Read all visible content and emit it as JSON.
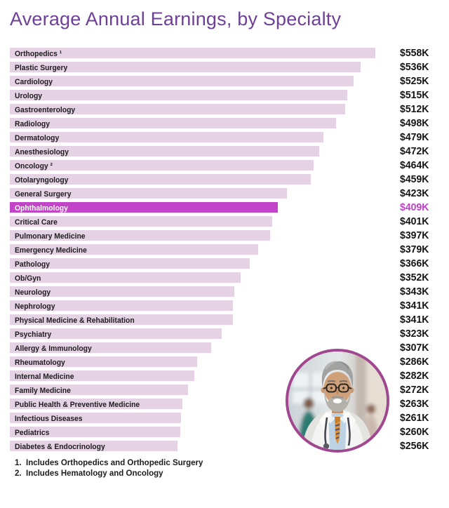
{
  "title": "Average Annual Earnings, by Specialty",
  "colors": {
    "title": "#6f4097",
    "bar": "#e6d2e5",
    "label": "#1d1d1d",
    "value": "#141414",
    "highlight_bar": "#c244c8",
    "highlight_text": "#ffffff",
    "highlight_value": "#c23ec8",
    "photo_border": "#a1478f"
  },
  "chart_data": {
    "type": "bar",
    "orientation": "horizontal",
    "title": "Average Annual Earnings, by Specialty",
    "unit": "USD thousands per year",
    "max_value": 558,
    "highlighted_category": "Ophthalmology",
    "bars": [
      {
        "label": "Orthopedics ¹",
        "value": 558,
        "value_label": "$558K",
        "highlight": false
      },
      {
        "label": "Plastic Surgery",
        "value": 536,
        "value_label": "$536K",
        "highlight": false
      },
      {
        "label": "Cardiology",
        "value": 525,
        "value_label": "$525K",
        "highlight": false
      },
      {
        "label": "Urology",
        "value": 515,
        "value_label": "$515K",
        "highlight": false
      },
      {
        "label": "Gastroenterology",
        "value": 512,
        "value_label": "$512K",
        "highlight": false
      },
      {
        "label": "Radiology",
        "value": 498,
        "value_label": "$498K",
        "highlight": false
      },
      {
        "label": "Dermatology",
        "value": 479,
        "value_label": "$479K",
        "highlight": false
      },
      {
        "label": "Anesthesiology",
        "value": 472,
        "value_label": "$472K",
        "highlight": false
      },
      {
        "label": "Oncology ²",
        "value": 464,
        "value_label": "$464K",
        "highlight": false
      },
      {
        "label": "Otolaryngology",
        "value": 459,
        "value_label": "$459K",
        "highlight": false
      },
      {
        "label": "General Surgery",
        "value": 423,
        "value_label": "$423K",
        "highlight": false
      },
      {
        "label": "Ophthalmology",
        "value": 409,
        "value_label": "$409K",
        "highlight": true
      },
      {
        "label": "Critical Care",
        "value": 401,
        "value_label": "$401K",
        "highlight": false
      },
      {
        "label": "Pulmonary Medicine",
        "value": 397,
        "value_label": "$397K",
        "highlight": false
      },
      {
        "label": "Emergency Medicine",
        "value": 379,
        "value_label": "$379K",
        "highlight": false
      },
      {
        "label": "Pathology",
        "value": 366,
        "value_label": "$366K",
        "highlight": false
      },
      {
        "label": "Ob/Gyn",
        "value": 352,
        "value_label": "$352K",
        "highlight": false
      },
      {
        "label": "Neurology",
        "value": 343,
        "value_label": "$343K",
        "highlight": false
      },
      {
        "label": "Nephrology",
        "value": 341,
        "value_label": "$341K",
        "highlight": false
      },
      {
        "label": "Physical Medicine & Rehabilitation",
        "value": 341,
        "value_label": "$341K",
        "highlight": false
      },
      {
        "label": "Psychiatry",
        "value": 323,
        "value_label": "$323K",
        "highlight": false
      },
      {
        "label": "Allergy & Immunology",
        "value": 307,
        "value_label": "$307K",
        "highlight": false
      },
      {
        "label": "Rheumatology",
        "value": 286,
        "value_label": "$286K",
        "highlight": false
      },
      {
        "label": "Internal Medicine",
        "value": 282,
        "value_label": "$282K",
        "highlight": false
      },
      {
        "label": "Family Medicine",
        "value": 272,
        "value_label": "$272K",
        "highlight": false
      },
      {
        "label": "Public Health & Preventive Medicine",
        "value": 263,
        "value_label": "$263K",
        "highlight": false
      },
      {
        "label": "Infectious Diseases",
        "value": 261,
        "value_label": "$261K",
        "highlight": false
      },
      {
        "label": "Pediatrics",
        "value": 260,
        "value_label": "$260K",
        "highlight": false
      },
      {
        "label": "Diabetes & Endocrinology",
        "value": 256,
        "value_label": "$256K",
        "highlight": false
      }
    ]
  },
  "footnotes": [
    {
      "number": "1.",
      "text": "Includes Orthopedics and Orthopedic Surgery"
    },
    {
      "number": "2.",
      "text": "Includes Hematology and Oncology"
    }
  ],
  "photo": {
    "description": "smiling senior male doctor with gray hair, beard, glasses, white coat, striped tie and stethoscope in a bright clinic hallway"
  }
}
